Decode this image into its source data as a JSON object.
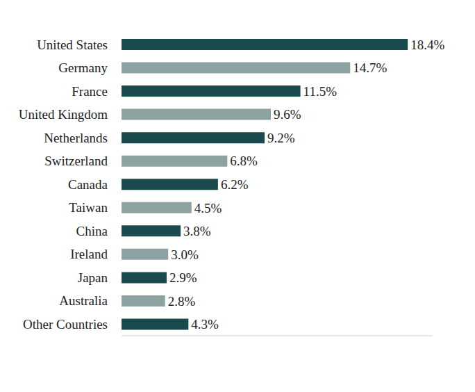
{
  "chart_data": {
    "type": "bar",
    "orientation": "horizontal",
    "categories": [
      "United States",
      "Germany",
      "France",
      "United Kingdom",
      "Netherlands",
      "Switzerland",
      "Canada",
      "Taiwan",
      "China",
      "Ireland",
      "Japan",
      "Australia",
      "Other Countries"
    ],
    "values": [
      18.4,
      14.7,
      11.5,
      9.6,
      9.2,
      6.8,
      6.2,
      4.5,
      3.8,
      3.0,
      2.9,
      2.8,
      4.3
    ],
    "value_labels": [
      "18.4%",
      "14.7%",
      "11.5%",
      "9.6%",
      "9.2%",
      "6.8%",
      "6.2%",
      "4.5%",
      "3.8%",
      "3.0%",
      "2.9%",
      "2.8%",
      "4.3%"
    ],
    "colors": [
      "#1b4a4e",
      "#8ca3a2",
      "#1b4a4e",
      "#8ca3a2",
      "#1b4a4e",
      "#8ca3a2",
      "#1b4a4e",
      "#8ca3a2",
      "#1b4a4e",
      "#8ca3a2",
      "#1b4a4e",
      "#8ca3a2",
      "#1b4a4e"
    ],
    "xlim": [
      0,
      20
    ],
    "data_labels": true,
    "tick_labels": "y",
    "grid": false
  }
}
